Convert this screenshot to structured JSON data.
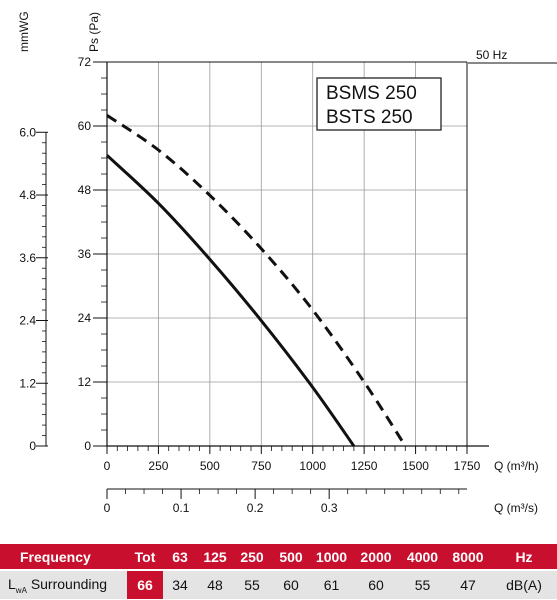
{
  "chart_data": {
    "type": "line",
    "title": "",
    "frequency_label": "50 Hz",
    "model_labels": [
      "BSMS 250",
      "BSTS 250"
    ],
    "xlabel": "Q (m³/h)",
    "xlim": [
      0,
      1750
    ],
    "x_ticks": [
      0,
      250,
      500,
      750,
      1000,
      1250,
      1500,
      1750
    ],
    "x_tick_labels": [
      "0",
      "250",
      "500",
      "750",
      "1000",
      "1250",
      "1500",
      "1750"
    ],
    "x2label": "Q (m³/s)",
    "x2lim": [
      0,
      0.4861
    ],
    "x2_ticks": [
      0,
      0.1,
      0.2,
      0.3
    ],
    "x2_tick_labels": [
      "0",
      "0.1",
      "0.2",
      "0.3"
    ],
    "ylabel": "Ps (Pa)",
    "ylim": [
      0,
      72
    ],
    "y_ticks": [
      0,
      12,
      24,
      36,
      48,
      60,
      72
    ],
    "y_tick_labels": [
      "0",
      "12",
      "24",
      "36",
      "48",
      "60",
      "72"
    ],
    "y2label": "mmWG",
    "y2lim": [
      0,
      7.344
    ],
    "y2_ticks": [
      0,
      1.2,
      2.4,
      3.6,
      4.8,
      6.0
    ],
    "y2_tick_labels": [
      "0",
      "1.2",
      "2.4",
      "3.6",
      "4.8",
      "6.0"
    ],
    "grid": true,
    "series": [
      {
        "style": "solid",
        "x": [
          0,
          250,
          500,
          750,
          1000,
          1200
        ],
        "y": [
          54.5,
          45.5,
          35,
          23.5,
          11,
          0
        ]
      },
      {
        "style": "dashed",
        "x": [
          0,
          250,
          500,
          750,
          1000,
          1250,
          1450
        ],
        "y": [
          62,
          55.5,
          47,
          37,
          25.5,
          12,
          0
        ]
      }
    ]
  },
  "table": {
    "header": [
      "Frequency",
      "Tot",
      "63",
      "125",
      "250",
      "500",
      "1000",
      "2000",
      "4000",
      "8000",
      "Hz"
    ],
    "row_label_main": "L",
    "row_label_sub": "wA",
    "row_label_rest": "Surrounding",
    "values": [
      "66",
      "34",
      "48",
      "55",
      "60",
      "61",
      "60",
      "55",
      "47",
      "dB(A)"
    ]
  },
  "colors": {
    "accent": "#c8102e",
    "row_bg": "#e4e4e4",
    "line": "#111111"
  }
}
